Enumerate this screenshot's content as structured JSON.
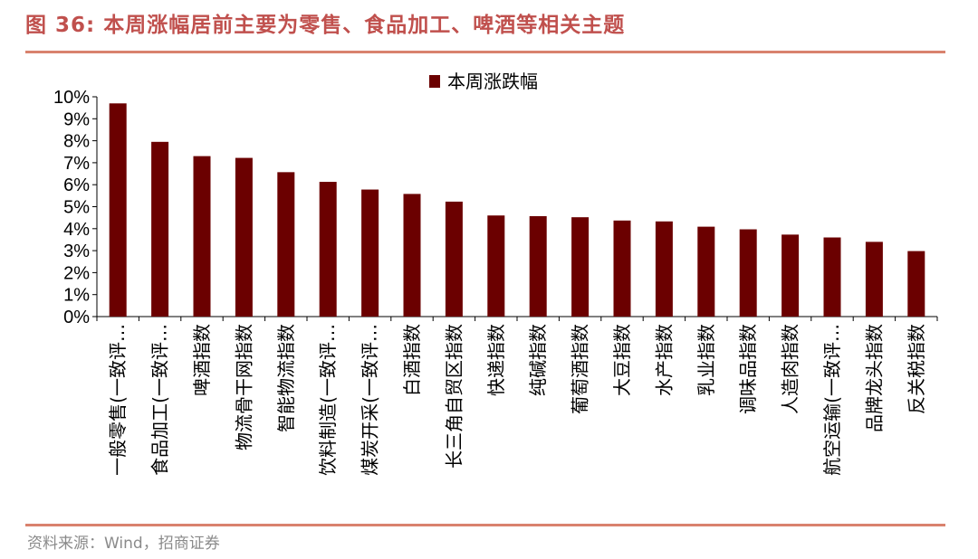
{
  "figure": {
    "title": "图 36: 本周涨幅居前主要为零售、食品加工、啤酒等相关主题",
    "source": "资料来源：Wind，招商证券"
  },
  "colors": {
    "bar": "#6b0000",
    "accent": "#c0504d",
    "rule": "#d9826e"
  },
  "chart_data": {
    "type": "bar",
    "title": "",
    "xlabel": "",
    "ylabel": "",
    "ylim": [
      0,
      10
    ],
    "y_ticks": [
      "0%",
      "1%",
      "2%",
      "3%",
      "4%",
      "5%",
      "6%",
      "7%",
      "8%",
      "9%",
      "10%"
    ],
    "legend": {
      "position": "top-center"
    },
    "grid": false,
    "categories": [
      "一般零售(一致评…",
      "食品加工(一致评…",
      "啤酒指数",
      "物流骨干网指数",
      "智能物流指数",
      "饮料制造(一致评…",
      "煤炭开采(一致评…",
      "白酒指数",
      "长三角自贸区指数",
      "快递指数",
      "纯碱指数",
      "葡萄酒指数",
      "大豆指数",
      "水产指数",
      "乳业指数",
      "调味品指数",
      "人造肉指数",
      "航空运输(一致评…",
      "品牌龙头指数",
      "反关税指数"
    ],
    "series": [
      {
        "name": "本周涨跌幅",
        "values": [
          9.7,
          7.95,
          7.3,
          7.22,
          6.57,
          6.13,
          5.78,
          5.58,
          5.23,
          4.6,
          4.57,
          4.52,
          4.37,
          4.33,
          4.09,
          3.97,
          3.73,
          3.6,
          3.4,
          2.98
        ]
      }
    ]
  }
}
